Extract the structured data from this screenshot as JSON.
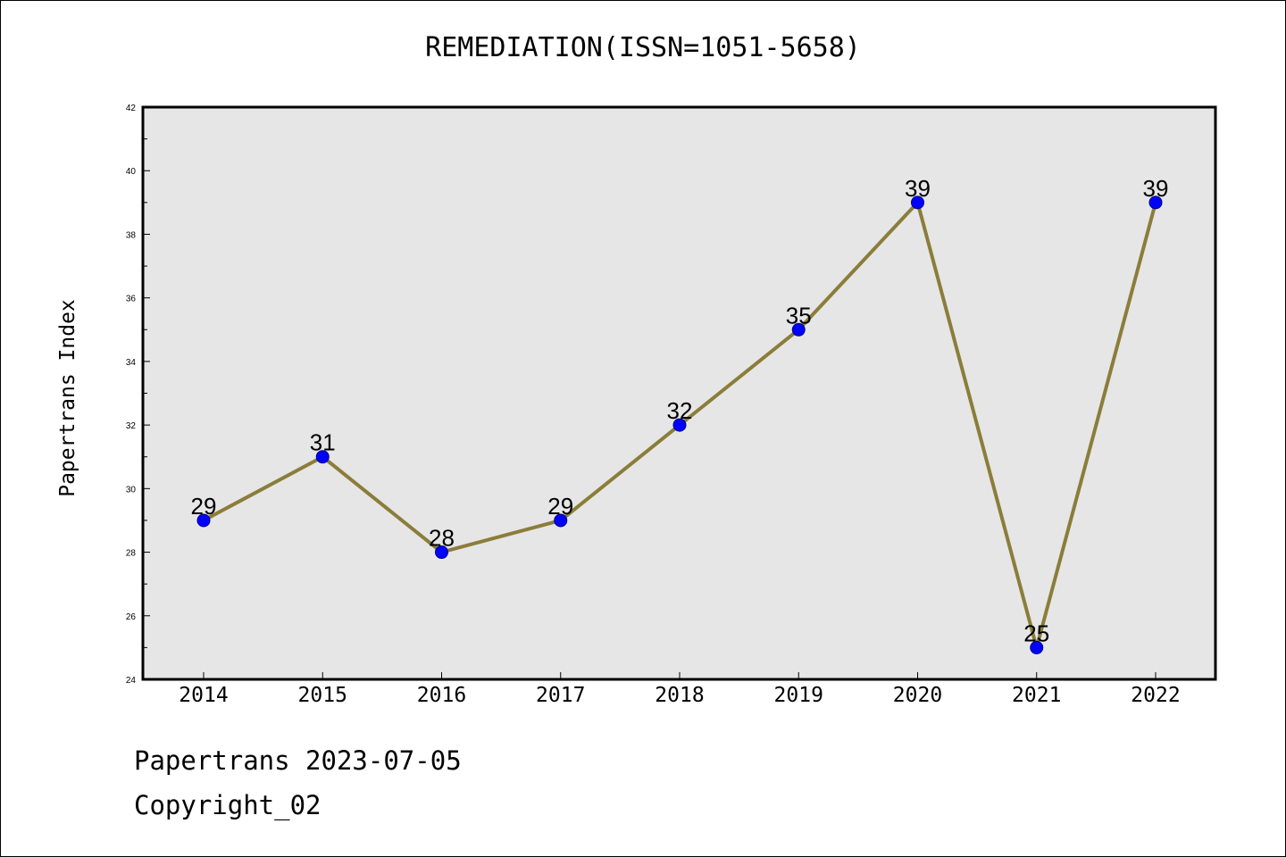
{
  "chart_data": {
    "type": "line",
    "title": "REMEDIATION(ISSN=1051-5658)",
    "xlabel": "",
    "ylabel": "Papertrans Index",
    "categories": [
      "2014",
      "2015",
      "2016",
      "2017",
      "2018",
      "2019",
      "2020",
      "2021",
      "2022"
    ],
    "series": [
      {
        "values": [
          29,
          31,
          28,
          29,
          32,
          35,
          39,
          25,
          39
        ]
      }
    ],
    "ylim": [
      24,
      42
    ],
    "yticks": [
      24,
      26,
      28,
      30,
      32,
      34,
      36,
      38,
      40,
      42
    ],
    "grid": false,
    "legend": "none",
    "colors": {
      "line": "#8b7d3a",
      "marker": "#0000ff",
      "plot_background": "#e6e6e6"
    }
  },
  "footer": {
    "line1": "Papertrans 2023-07-05",
    "line2": "Copyright_02"
  }
}
